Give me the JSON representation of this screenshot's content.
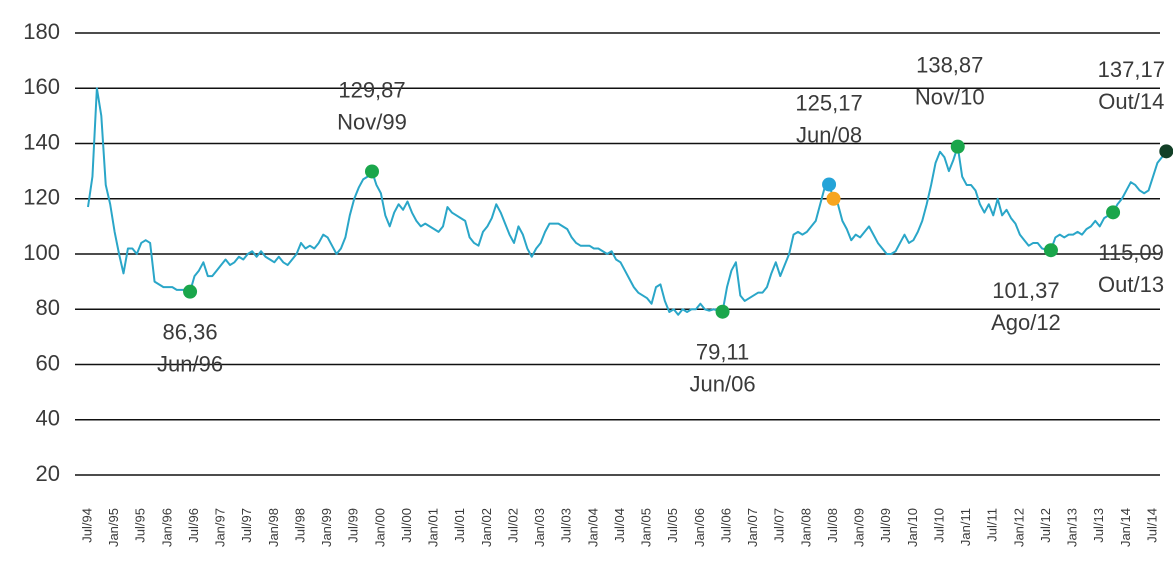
{
  "chart_data": {
    "type": "line",
    "categories": [
      "Jul/94",
      null,
      null,
      null,
      null,
      null,
      "Jan/95",
      null,
      null,
      null,
      null,
      null,
      "Jul/95",
      null,
      null,
      null,
      null,
      null,
      "Jan/96",
      null,
      null,
      null,
      null,
      null,
      "Jul/96",
      null,
      null,
      null,
      null,
      null,
      "Jan/97",
      null,
      null,
      null,
      null,
      null,
      "Jul/97",
      null,
      null,
      null,
      null,
      null,
      "Jan/98",
      null,
      null,
      null,
      null,
      null,
      "Jul/98",
      null,
      null,
      null,
      null,
      null,
      "Jan/99",
      null,
      null,
      null,
      null,
      null,
      "Jul/99",
      null,
      null,
      null,
      null,
      null,
      "Jan/00",
      null,
      null,
      null,
      null,
      null,
      "Jul/00",
      null,
      null,
      null,
      null,
      null,
      "Jan/01",
      null,
      null,
      null,
      null,
      null,
      "Jul/01",
      null,
      null,
      null,
      null,
      null,
      "Jan/02",
      null,
      null,
      null,
      null,
      null,
      "Jul/02",
      null,
      null,
      null,
      null,
      null,
      "Jan/03",
      null,
      null,
      null,
      null,
      null,
      "Jul/03",
      null,
      null,
      null,
      null,
      null,
      "Jan/04",
      null,
      null,
      null,
      null,
      null,
      "Jul/04",
      null,
      null,
      null,
      null,
      null,
      "Jan/05",
      null,
      null,
      null,
      null,
      null,
      "Jul/05",
      null,
      null,
      null,
      null,
      null,
      "Jan/06",
      null,
      null,
      null,
      null,
      null,
      "Jul/06",
      null,
      null,
      null,
      null,
      null,
      "Jan/07",
      null,
      null,
      null,
      null,
      null,
      "Jul/07",
      null,
      null,
      null,
      null,
      null,
      "Jan/08",
      null,
      null,
      null,
      null,
      null,
      "Jul/08",
      null,
      null,
      null,
      null,
      null,
      "Jan/09",
      null,
      null,
      null,
      null,
      null,
      "Jul/09",
      null,
      null,
      null,
      null,
      null,
      "Jan/10",
      null,
      null,
      null,
      null,
      null,
      "Jul/10",
      null,
      null,
      null,
      null,
      null,
      "Jan/11",
      null,
      null,
      null,
      null,
      null,
      "Jul/11",
      null,
      null,
      null,
      null,
      null,
      "Jan/12",
      null,
      null,
      null,
      null,
      null,
      "Jul/12",
      null,
      null,
      null,
      null,
      null,
      "Jan/13",
      null,
      null,
      null,
      null,
      null,
      "Jul/13",
      null,
      null,
      null,
      null,
      null,
      "Jan/14",
      null,
      null,
      null,
      null,
      null,
      "Jul/14",
      null,
      null,
      null
    ],
    "series": [
      {
        "color": "#2aa6c8",
        "values": [
          117,
          128,
          160,
          150,
          125,
          118,
          108,
          100,
          93,
          102,
          102,
          100,
          104,
          105,
          104,
          90,
          89,
          88,
          88,
          88,
          87,
          87,
          87,
          86.36,
          92,
          94,
          97,
          92,
          92,
          94,
          96,
          98,
          96,
          97,
          99,
          98,
          100,
          101,
          99,
          101,
          99,
          98,
          97,
          99,
          97,
          96,
          98,
          100,
          104,
          102,
          103,
          102,
          104,
          107,
          106,
          103,
          100,
          102,
          106,
          114,
          120,
          124,
          127,
          128,
          129.87,
          125,
          122,
          114,
          110,
          115,
          118,
          116,
          119,
          115,
          112,
          110,
          111,
          110,
          109,
          108,
          110,
          117,
          115,
          114,
          113,
          112,
          106,
          104,
          103,
          108,
          110,
          113,
          118,
          115,
          111,
          107,
          104,
          110,
          107,
          102,
          99,
          102,
          104,
          108,
          111,
          111,
          111,
          110,
          109,
          106,
          104,
          103,
          103,
          103,
          102,
          102,
          101,
          100,
          101,
          98,
          97,
          94,
          91,
          88,
          86,
          85,
          84,
          82,
          88,
          89,
          83,
          79,
          80,
          78,
          80,
          79,
          80,
          80,
          82,
          80,
          79.5,
          80,
          79.5,
          79.11,
          88,
          94,
          97,
          85,
          83,
          84,
          85,
          86,
          86,
          88,
          93,
          97,
          92,
          96,
          100,
          107,
          108,
          107,
          108,
          110,
          112,
          118,
          124,
          125.17,
          120,
          118,
          112,
          109,
          105,
          107,
          106,
          108,
          110,
          107,
          104,
          102,
          100,
          100,
          101,
          104,
          107,
          104,
          105,
          108,
          112,
          118,
          125,
          133,
          137,
          135,
          130,
          134,
          138.87,
          128,
          125,
          125,
          123,
          118,
          115,
          118,
          114,
          120,
          114,
          116,
          113,
          111,
          107,
          105,
          103,
          104,
          104,
          102,
          101.5,
          101.37,
          106,
          107,
          106,
          107,
          107,
          108,
          107,
          109,
          110,
          112,
          110,
          113,
          114,
          115.09,
          118,
          120,
          123,
          126,
          125,
          123,
          122,
          123,
          128,
          133,
          135,
          137.17
        ],
        "value_labels": [
          null,
          null,
          null,
          null,
          null,
          null,
          null,
          null,
          null,
          null,
          null,
          null,
          null,
          null,
          null,
          null,
          null,
          null,
          null,
          null,
          null,
          null,
          null,
          "86,36",
          null,
          null,
          null,
          null,
          null,
          null,
          null,
          null,
          null,
          null,
          null,
          null,
          null,
          null,
          null,
          null,
          null,
          null,
          null,
          null,
          null,
          null,
          null,
          null,
          null,
          null,
          null,
          null,
          null,
          null,
          null,
          null,
          null,
          null,
          null,
          null,
          null,
          null,
          null,
          null,
          "129,87",
          null,
          null,
          null,
          null,
          null,
          null,
          null,
          null,
          null,
          null,
          null,
          null,
          null,
          null,
          null,
          null,
          null,
          null,
          null,
          null,
          null,
          null,
          null,
          null,
          null,
          null,
          null,
          null,
          null,
          null,
          null,
          null,
          null,
          null,
          null,
          null,
          null,
          null,
          null,
          null,
          null,
          null,
          null,
          null,
          null,
          null,
          null,
          null,
          null,
          null,
          null,
          null,
          null,
          null,
          null,
          null,
          null,
          null,
          null,
          null,
          null,
          null,
          null,
          null,
          null,
          null,
          null,
          null,
          null,
          null,
          null,
          null,
          null,
          null,
          null,
          null,
          null,
          null,
          "79,11",
          null,
          null,
          null,
          null,
          null,
          null,
          null,
          null,
          null,
          null,
          null,
          null,
          null,
          null,
          null,
          null,
          null,
          null,
          null,
          null,
          null,
          null,
          null,
          "125,17",
          null,
          null,
          null,
          null,
          null,
          null,
          null,
          null,
          null,
          null,
          null,
          null,
          null,
          null,
          null,
          null,
          null,
          null,
          null,
          null,
          null,
          null,
          null,
          null,
          null,
          null,
          null,
          null,
          "138,87",
          null,
          null,
          null,
          null,
          null,
          null,
          null,
          null,
          null,
          null,
          null,
          null,
          null,
          null,
          null,
          null,
          null,
          null,
          null,
          null,
          "101,37",
          null,
          null,
          null,
          null,
          null,
          null,
          null,
          null,
          null,
          null,
          null,
          null,
          null,
          "115,09",
          null,
          null,
          null,
          null,
          null,
          null,
          null,
          null,
          null,
          null,
          null,
          "137,17"
        ],
        "marker_dates": [
          null,
          null,
          null,
          null,
          null,
          null,
          null,
          null,
          null,
          null,
          null,
          null,
          null,
          null,
          null,
          null,
          null,
          null,
          null,
          null,
          null,
          null,
          null,
          "Jun/96",
          null,
          null,
          null,
          null,
          null,
          null,
          null,
          null,
          null,
          null,
          null,
          null,
          null,
          null,
          null,
          null,
          null,
          null,
          null,
          null,
          null,
          null,
          null,
          null,
          null,
          null,
          null,
          null,
          null,
          null,
          null,
          null,
          null,
          null,
          null,
          null,
          null,
          null,
          null,
          null,
          "Nov/99",
          null,
          null,
          null,
          null,
          null,
          null,
          null,
          null,
          null,
          null,
          null,
          null,
          null,
          null,
          null,
          null,
          null,
          null,
          null,
          null,
          null,
          null,
          null,
          null,
          null,
          null,
          null,
          null,
          null,
          null,
          null,
          null,
          null,
          null,
          null,
          null,
          null,
          null,
          null,
          null,
          null,
          null,
          null,
          null,
          null,
          null,
          null,
          null,
          null,
          null,
          null,
          null,
          null,
          null,
          null,
          null,
          null,
          null,
          null,
          null,
          null,
          null,
          null,
          null,
          null,
          null,
          null,
          null,
          null,
          null,
          null,
          null,
          null,
          null,
          null,
          null,
          null,
          null,
          "Jun/06",
          null,
          null,
          null,
          null,
          null,
          null,
          null,
          null,
          null,
          null,
          null,
          null,
          null,
          null,
          null,
          null,
          null,
          null,
          null,
          null,
          null,
          null,
          null,
          "Jun/08",
          null,
          null,
          null,
          null,
          null,
          null,
          null,
          null,
          null,
          null,
          null,
          null,
          null,
          null,
          null,
          null,
          null,
          null,
          null,
          null,
          null,
          null,
          null,
          null,
          null,
          null,
          null,
          null,
          "Nov/10",
          null,
          null,
          null,
          null,
          null,
          null,
          null,
          null,
          null,
          null,
          null,
          null,
          null,
          null,
          null,
          null,
          null,
          null,
          null,
          null,
          "Ago/12",
          null,
          null,
          null,
          null,
          null,
          null,
          null,
          null,
          null,
          null,
          null,
          null,
          null,
          "Out/13",
          null,
          null,
          null,
          null,
          null,
          null,
          null,
          null,
          null,
          null,
          null,
          "Out/14"
        ],
        "marker_colors": [
          null,
          null,
          null,
          null,
          null,
          null,
          null,
          null,
          null,
          null,
          null,
          null,
          null,
          null,
          null,
          null,
          null,
          null,
          null,
          null,
          null,
          null,
          null,
          "#1aa64b",
          null,
          null,
          null,
          null,
          null,
          null,
          null,
          null,
          null,
          null,
          null,
          null,
          null,
          null,
          null,
          null,
          null,
          null,
          null,
          null,
          null,
          null,
          null,
          null,
          null,
          null,
          null,
          null,
          null,
          null,
          null,
          null,
          null,
          null,
          null,
          null,
          null,
          null,
          null,
          null,
          "#1aa64b",
          null,
          null,
          null,
          null,
          null,
          null,
          null,
          null,
          null,
          null,
          null,
          null,
          null,
          null,
          null,
          null,
          null,
          null,
          null,
          null,
          null,
          null,
          null,
          null,
          null,
          null,
          null,
          null,
          null,
          null,
          null,
          null,
          null,
          null,
          null,
          null,
          null,
          null,
          null,
          null,
          null,
          null,
          null,
          null,
          null,
          null,
          null,
          null,
          null,
          null,
          null,
          null,
          null,
          null,
          null,
          null,
          null,
          null,
          null,
          null,
          null,
          null,
          null,
          null,
          null,
          null,
          null,
          null,
          null,
          null,
          null,
          null,
          null,
          null,
          null,
          null,
          null,
          null,
          "#1aa64b",
          null,
          null,
          null,
          null,
          null,
          null,
          null,
          null,
          null,
          null,
          null,
          null,
          null,
          null,
          null,
          null,
          null,
          null,
          null,
          null,
          null,
          null,
          null,
          "#24a3d8",
          "#f7a520",
          null,
          null,
          null,
          null,
          null,
          null,
          null,
          null,
          null,
          null,
          null,
          null,
          null,
          null,
          null,
          null,
          null,
          null,
          null,
          null,
          null,
          null,
          null,
          null,
          null,
          null,
          null,
          "#1aa64b",
          null,
          null,
          null,
          null,
          null,
          null,
          null,
          null,
          null,
          null,
          null,
          null,
          null,
          null,
          null,
          null,
          null,
          null,
          null,
          null,
          "#1aa64b",
          null,
          null,
          null,
          null,
          null,
          null,
          null,
          null,
          null,
          null,
          null,
          null,
          null,
          "#1aa64b",
          null,
          null,
          null,
          null,
          null,
          null,
          null,
          null,
          null,
          null,
          null,
          "#123f27"
        ]
      }
    ],
    "ylim": [
      20,
      180
    ],
    "yticks": [
      20,
      40,
      60,
      80,
      100,
      120,
      140,
      160,
      180
    ],
    "grid": true
  }
}
